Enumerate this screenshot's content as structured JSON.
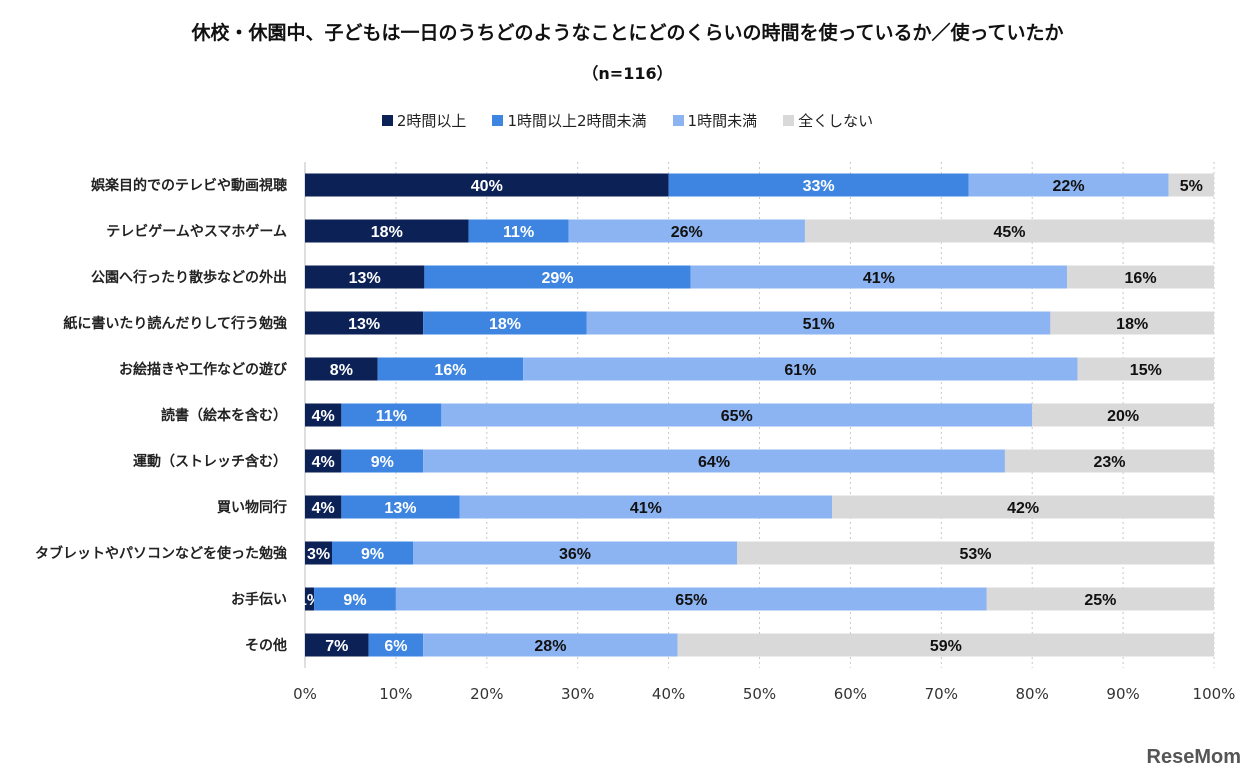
{
  "chart_data": {
    "type": "bar",
    "orientation": "horizontal",
    "stacked": true,
    "title": "休校・休園中、子どもは一日のうちどのようなことにどのくらいの時間を使っているか／使っていたか",
    "subtitle": "（n=116）",
    "categories": [
      "娯楽目的でのテレビや動画視聴",
      "テレビゲームやスマホゲーム",
      "公園へ行ったり散歩などの外出",
      "紙に書いたり読んだりして行う勉強",
      "お絵描きや工作などの遊び",
      "読書（絵本を含む）",
      "運動（ストレッチ含む）",
      "買い物同行",
      "タブレットやパソコンなどを使った勉強",
      "お手伝い",
      "その他"
    ],
    "series": [
      {
        "name": "2時間以上",
        "color": "#0c2257",
        "values": [
          40,
          18,
          13,
          13,
          8,
          4,
          4,
          4,
          3,
          1,
          7
        ]
      },
      {
        "name": "1時間以上2時間未満",
        "color": "#3d85e0",
        "values": [
          33,
          11,
          29,
          18,
          16,
          11,
          9,
          13,
          9,
          9,
          6
        ]
      },
      {
        "name": "1時間未満",
        "color": "#8db4f2",
        "values": [
          22,
          26,
          41,
          51,
          61,
          65,
          64,
          41,
          36,
          65,
          28
        ]
      },
      {
        "name": "全くしない",
        "color": "#d9d9d9",
        "values": [
          5,
          45,
          16,
          18,
          15,
          20,
          23,
          42,
          53,
          25,
          59
        ]
      }
    ],
    "xlim": [
      0,
      100
    ],
    "xticks": [
      "0%",
      "10%",
      "20%",
      "30%",
      "40%",
      "50%",
      "60%",
      "70%",
      "80%",
      "90%",
      "100%"
    ],
    "grid": "vertical dotted",
    "legend": "top"
  },
  "watermark": "ReseMom"
}
